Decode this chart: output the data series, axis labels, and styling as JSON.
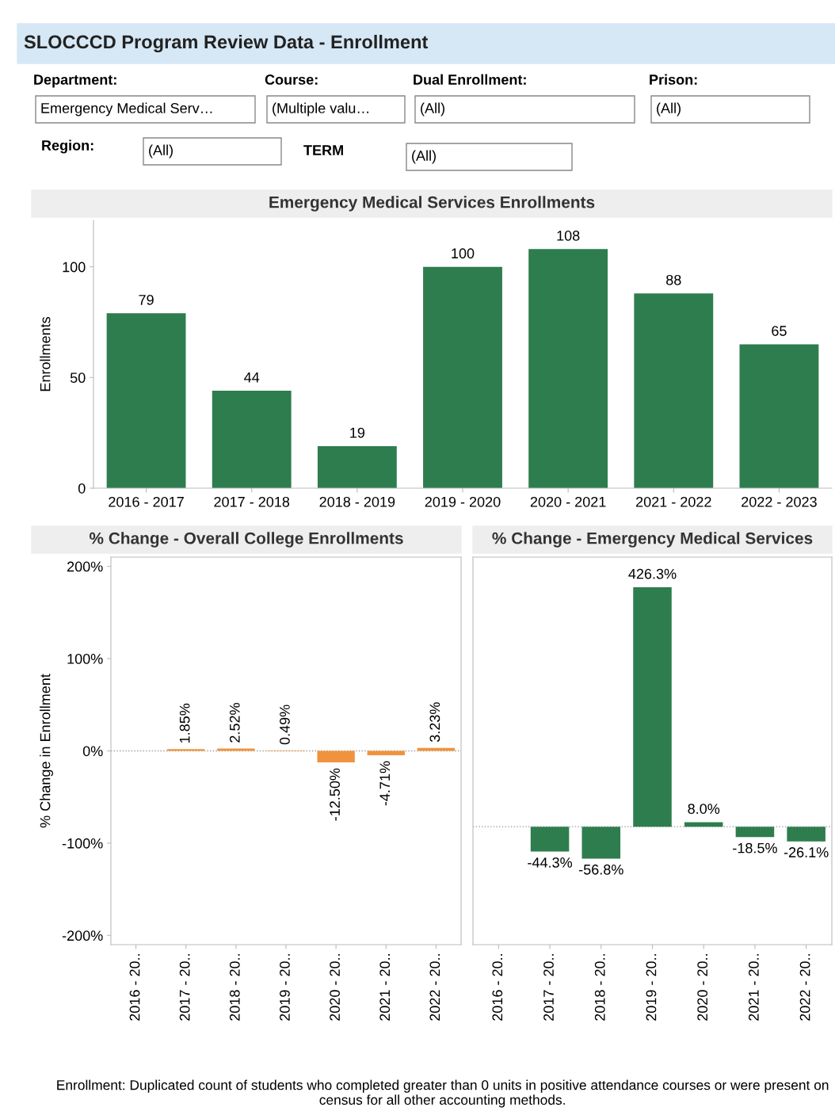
{
  "chart_data": [
    {
      "type": "other",
      "title": "SLOCCCD Program Review Data - Enrollment",
      "annotations": [
        "Department:",
        "Emergency Medical Serv…",
        "Course:",
        "(Multiple valu…",
        "Dual Enrollment:",
        "(All)",
        "Prison:",
        "(All)",
        "Region:",
        "(All)",
        "TERM",
        "(All)"
      ]
    },
    {
      "type": "bar",
      "title": "Emergency Medical Services Enrollments",
      "ylabel": "Enrollments",
      "categories": [
        "2016 - 2017",
        "2017 - 2018",
        "2018 - 2019",
        "2019 - 2020",
        "2020 - 2021",
        "2021 - 2022",
        "2022 - 2023"
      ],
      "values": [
        79,
        44,
        19,
        100,
        108,
        88,
        65
      ],
      "color": "#2e7d4e",
      "ylim": [
        0,
        121
      ],
      "yticks": [
        0,
        50,
        100
      ],
      "data_labels": true,
      "grid": false
    },
    {
      "type": "bar",
      "title": "% Change - Overall College Enrollments",
      "ylabel": "% Change in Enrollment",
      "categories": [
        "2016 - 20..",
        "2017 - 20..",
        "2018 - 20..",
        "2019 - 20..",
        "2020 - 20..",
        "2021 - 20..",
        "2022 - 20.."
      ],
      "values": [
        null,
        1.85,
        2.52,
        0.49,
        -12.5,
        -4.71,
        3.23
      ],
      "value_labels": [
        null,
        "1.85%",
        "2.52%",
        "0.49%",
        "-12.50%",
        "-4.71%",
        "3.23%"
      ],
      "color": "#f0933e",
      "ylim": [
        -210,
        210
      ],
      "yticks": [
        {
          "value": -200,
          "label": "-200%"
        },
        {
          "value": -100,
          "label": "-100%"
        },
        {
          "value": 0,
          "label": "0%"
        },
        {
          "value": 100,
          "label": "100%"
        },
        {
          "value": 200,
          "label": "200%"
        }
      ],
      "ref_lines": [
        {
          "axis": "y",
          "value": 0,
          "color": "#999999",
          "line_style": "dotted"
        }
      ],
      "grid": false
    },
    {
      "type": "bar",
      "title": "% Change - Emergency Medical Services",
      "categories": [
        "2016 - 20..",
        "2017 - 20..",
        "2018 - 20..",
        "2019 - 20..",
        "2020 - 20..",
        "2021 - 20..",
        "2022 - 20.."
      ],
      "values": [
        null,
        -44.3,
        -56.8,
        426.3,
        8.0,
        -18.5,
        -26.1
      ],
      "value_labels": [
        null,
        "-44.3%",
        "-56.8%",
        "426.3%",
        "8.0%",
        "-18.5%",
        "-26.1%"
      ],
      "color": "#2e7d4e",
      "ylim": [
        -210,
        480
      ],
      "tick_labels": "x",
      "ref_lines": [
        {
          "axis": "y",
          "value": 0,
          "color": "#999999",
          "line_style": "dotted"
        }
      ],
      "grid": false,
      "annotations": [
        "Enrollment: Duplicated count of students who completed greater than 0 units in positive attendance courses or were present on census for all other accounting methods."
      ]
    }
  ]
}
